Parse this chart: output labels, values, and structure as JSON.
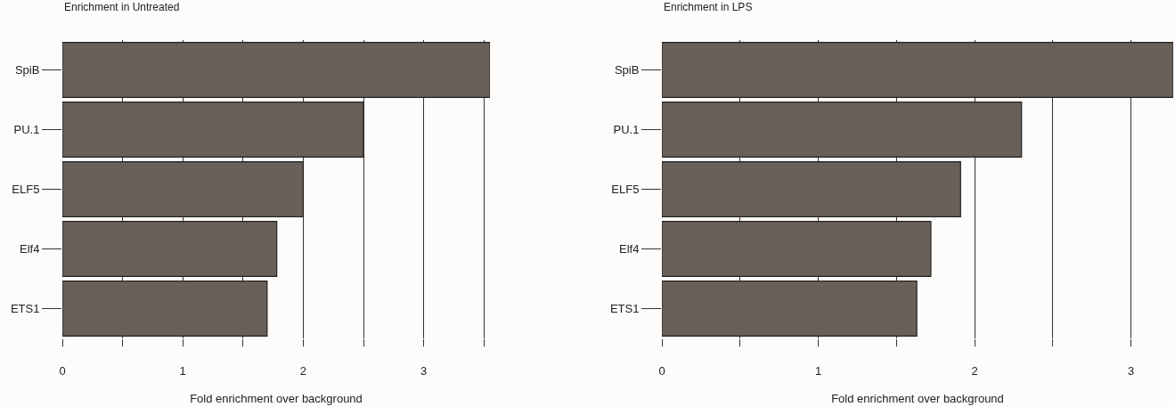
{
  "chart_data": [
    {
      "type": "bar",
      "orientation": "horizontal",
      "title": "Enrichment in Untreated",
      "xlabel": "Fold enrichment over background",
      "categories": [
        "SpiB",
        "PU.1",
        "ELF5",
        "Elf4",
        "ETS1"
      ],
      "values": [
        3.55,
        2.5,
        2.0,
        1.78,
        1.7
      ],
      "color": "#686059",
      "xlim": [
        0,
        3.55
      ],
      "xticks": [
        0,
        {
          "value": 0.5,
          "label": null
        },
        1,
        {
          "value": 1.5,
          "label": null
        },
        2,
        {
          "value": 2.5,
          "label": null
        },
        3,
        {
          "value": 3.5,
          "label": null
        }
      ],
      "grid": "x"
    },
    {
      "type": "bar",
      "orientation": "horizontal",
      "title": "Enrichment in LPS",
      "xlabel": "Fold enrichment over background",
      "categories": [
        "SpiB",
        "PU.1",
        "ELF5",
        "Elf4",
        "ETS1"
      ],
      "values": [
        3.27,
        2.3,
        1.91,
        1.72,
        1.63
      ],
      "color": "#686059",
      "xlim": [
        0,
        3.27
      ],
      "xticks": [
        0,
        {
          "value": 0.5,
          "label": null
        },
        1,
        {
          "value": 1.5,
          "label": null
        },
        2,
        {
          "value": 2.5,
          "label": null
        },
        3
      ],
      "grid": "x"
    }
  ]
}
